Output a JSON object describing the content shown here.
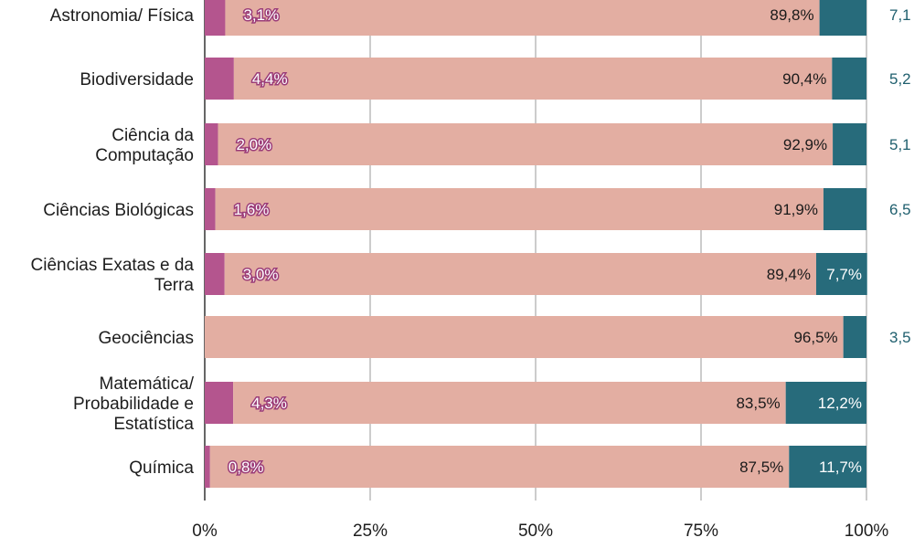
{
  "chart_data": {
    "type": "bar",
    "orientation": "horizontal",
    "stacked": true,
    "categories": [
      "Astronomia/ Física",
      "Biodiversidade",
      "Ciência da Computação",
      "Ciências Biológicas",
      "Ciências Exatas e da Terra",
      "Geociências",
      "Matemática/ Probabilidade e Estatística",
      "Química"
    ],
    "category_lines": [
      [
        "Astronomia/ Física"
      ],
      [
        "Biodiversidade"
      ],
      [
        "Ciência da",
        "Computação"
      ],
      [
        "Ciências Biológicas"
      ],
      [
        "Ciências Exatas e da",
        "Terra"
      ],
      [
        "Geociências"
      ],
      [
        "Matemática/",
        "Probabilidade e",
        "Estatística"
      ],
      [
        "Química"
      ]
    ],
    "series": [
      {
        "color": "#b4558e",
        "values": [
          3.1,
          4.4,
          2.0,
          1.6,
          3.0,
          0.0,
          4.3,
          0.8
        ],
        "labels": [
          "3,1%",
          "4,4%",
          "2,0%",
          "1,6%",
          "3,0%",
          "",
          "4,3%",
          "0,8%"
        ]
      },
      {
        "color": "#e3aea2",
        "values": [
          89.8,
          90.4,
          92.9,
          91.9,
          89.4,
          96.5,
          83.5,
          87.5
        ],
        "labels": [
          "89,8%",
          "90,4%",
          "92,9%",
          "91,9%",
          "89,4%",
          "96,5%",
          "83,5%",
          "87,5%"
        ]
      },
      {
        "color": "#276b7b",
        "values": [
          7.1,
          5.2,
          5.1,
          6.5,
          7.7,
          3.5,
          12.2,
          11.7
        ],
        "labels": [
          "7,1",
          "5,2",
          "5,1",
          "6,5",
          "7,7%",
          "3,5",
          "12,2%",
          "11,7%"
        ],
        "label_outside": [
          true,
          true,
          true,
          true,
          false,
          true,
          false,
          false
        ]
      }
    ],
    "xlim": [
      0,
      100
    ],
    "xticks": [
      0,
      25,
      50,
      75,
      100
    ],
    "xtick_labels": [
      "0%",
      "25%",
      "50%",
      "75%",
      "100%"
    ],
    "grid": "vertical",
    "legend": "none"
  }
}
